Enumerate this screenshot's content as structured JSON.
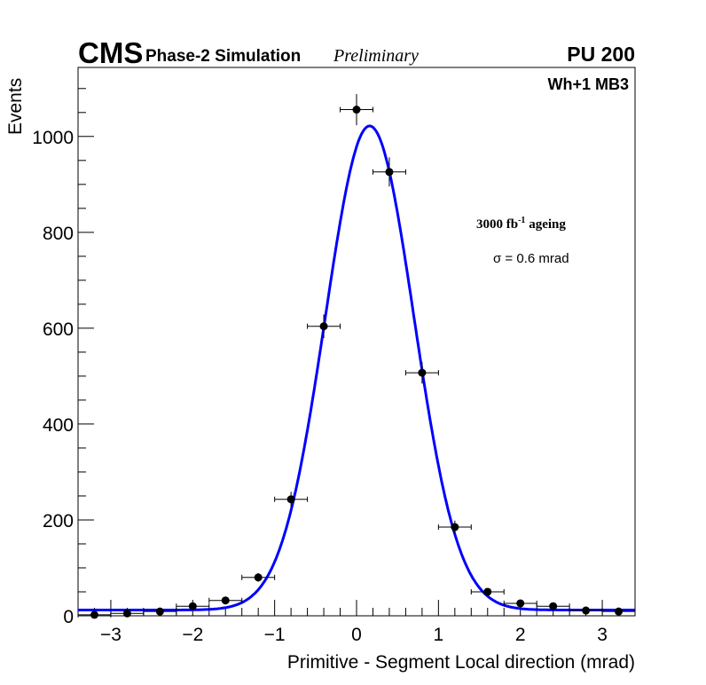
{
  "chart_data": {
    "type": "scatter",
    "title": "",
    "header": {
      "experiment": "CMS",
      "subtitle": "Phase-2 Simulation",
      "status": "Preliminary",
      "pileup": "PU 200"
    },
    "label": "Wh+1 MB3",
    "annotations": {
      "ageing": "3000 fb",
      "ageing_sup": "-1",
      "ageing_suffix": " ageing",
      "sigma": "σ = 0.6 mrad"
    },
    "xlabel": "Primitive - Segment Local direction (mrad)",
    "ylabel": "Events",
    "xlim": [
      -3.4,
      3.4
    ],
    "ylim": [
      0,
      1144
    ],
    "xticks": [
      -3,
      -2,
      -1,
      0,
      1,
      2,
      3
    ],
    "xtick_labels": [
      "−3",
      "−2",
      "−1",
      "0",
      "1",
      "2",
      "3"
    ],
    "yticks": [
      0,
      200,
      400,
      600,
      800,
      1000
    ],
    "ytick_labels": [
      "0",
      "200",
      "400",
      "600",
      "800",
      "1000"
    ],
    "bin_half_width": 0.2,
    "x": [
      -3.2,
      -2.8,
      -2.4,
      -2.0,
      -1.6,
      -1.2,
      -0.8,
      -0.4,
      0.0,
      0.4,
      0.8,
      1.2,
      1.6,
      2.0,
      2.4,
      2.8,
      3.2
    ],
    "y": [
      2,
      5,
      9,
      20,
      32,
      80,
      243,
      604,
      1056,
      926,
      507,
      185,
      50,
      26,
      20,
      11,
      9
    ],
    "fit": {
      "type": "gaussian+constant",
      "amplitude": 1010,
      "mean": 0.16,
      "sigma": 0.54,
      "constant": 12,
      "color": "#0000ff"
    }
  }
}
